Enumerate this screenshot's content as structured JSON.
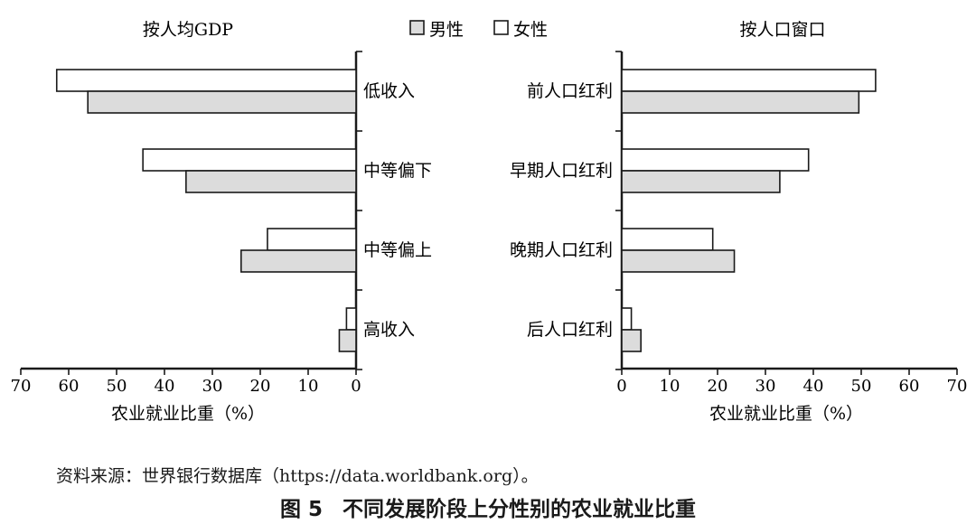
{
  "legend": [
    {
      "label": "男性",
      "color": "#dcdcdc"
    },
    {
      "label": "女性",
      "color": "#ffffff"
    }
  ],
  "colors": {
    "male_fill": "#dcdcdc",
    "female_fill": "#ffffff",
    "stroke": "#1a1a1a"
  },
  "chart_data": [
    {
      "type": "bar",
      "orientation": "horizontal",
      "x_direction": "reversed",
      "title": "按人均GDP",
      "categories": [
        "低收入",
        "中等偏下",
        "中等偏上",
        "高收入"
      ],
      "series": [
        {
          "name": "男性",
          "values": [
            56,
            35.5,
            24,
            3.5
          ]
        },
        {
          "name": "女性",
          "values": [
            62.5,
            44.5,
            18.5,
            2
          ]
        }
      ],
      "xlabel": "农业就业比重（%）",
      "xlim": [
        0,
        70
      ],
      "xticks": [
        70,
        60,
        50,
        40,
        30,
        20,
        10,
        0
      ],
      "grid": false,
      "legend_position": "top-center"
    },
    {
      "type": "bar",
      "orientation": "horizontal",
      "title": "按人口窗口",
      "categories": [
        "前人口红利",
        "早期人口红利",
        "晚期人口红利",
        "后人口红利"
      ],
      "series": [
        {
          "name": "男性",
          "values": [
            49.5,
            33,
            23.5,
            4
          ]
        },
        {
          "name": "女性",
          "values": [
            53,
            39,
            19,
            2
          ]
        }
      ],
      "xlabel": "农业就业比重（%）",
      "xlim": [
        0,
        70
      ],
      "xticks": [
        0,
        10,
        20,
        30,
        40,
        50,
        60,
        70
      ],
      "grid": false,
      "legend_position": "top-center"
    }
  ],
  "source": "资料来源：世界银行数据库（https://data.worldbank.org）。",
  "caption": {
    "number": "图 5",
    "title": "不同发展阶段上分性别的农业就业比重"
  }
}
